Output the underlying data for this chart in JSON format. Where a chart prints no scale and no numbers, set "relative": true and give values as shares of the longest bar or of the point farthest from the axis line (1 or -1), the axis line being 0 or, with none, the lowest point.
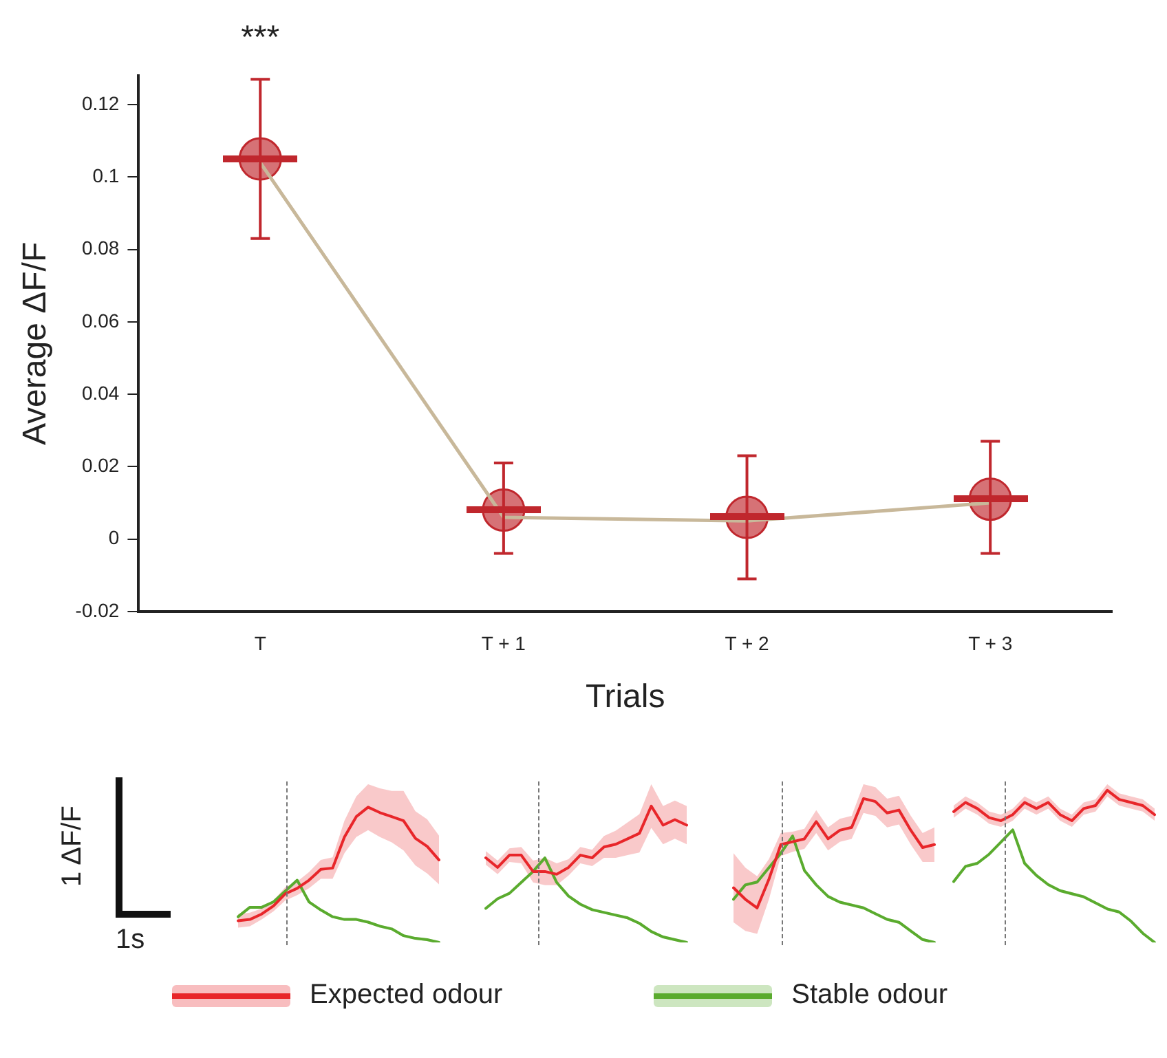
{
  "chart_data": [
    {
      "type": "line",
      "categories": [
        "T",
        "T + 1",
        "T + 2",
        "T + 3"
      ],
      "xlabel": "Trials",
      "ylabel": "Average ΔF/F",
      "ylim": [
        -0.02,
        0.128
      ],
      "yticks": [
        -0.02,
        0,
        0.02,
        0.04,
        0.06,
        0.08,
        0.1,
        0.12
      ],
      "grid": false,
      "series": [
        {
          "type": "line",
          "color": "#c8b89a",
          "values": [
            0.104,
            0.006,
            0.005,
            0.01
          ],
          "marker": "none"
        },
        {
          "type": "scatter",
          "color": "#c0272d",
          "values": [
            0.105,
            0.008,
            0.006,
            0.011
          ],
          "errors": [
            [
              0.083,
              0.127
            ],
            [
              -0.004,
              0.021
            ],
            [
              -0.011,
              0.023
            ],
            [
              -0.004,
              0.027
            ]
          ],
          "marker": "circle"
        }
      ],
      "annotations": [
        "***"
      ]
    },
    {
      "type": "line",
      "relative": true,
      "categories": [
        null,
        null,
        null,
        null,
        null,
        null,
        null,
        null,
        null,
        null,
        null,
        null,
        null,
        null,
        null,
        null,
        null,
        null
      ],
      "tick_labels": false,
      "legend": "bottom",
      "line_style": "solid",
      "marker": "none",
      "series": [
        {
          "name": "Expected odour",
          "color": "#e8262a",
          "values": [
            0.16,
            0.17,
            0.21,
            0.27,
            0.36,
            0.4,
            0.46,
            0.54,
            0.55,
            0.78,
            0.93,
            1,
            0.96,
            0.93,
            0.9,
            0.77,
            0.71,
            0.61
          ],
          "lower": [
            0.11,
            0.12,
            0.17,
            0.23,
            0.31,
            0.35,
            0.4,
            0.47,
            0.47,
            0.66,
            0.78,
            0.83,
            0.78,
            0.74,
            0.68,
            0.57,
            0.51,
            0.43
          ],
          "upper": [
            0.21,
            0.22,
            0.25,
            0.31,
            0.41,
            0.45,
            0.52,
            0.61,
            0.63,
            0.9,
            1.08,
            1.17,
            1.14,
            1.12,
            1.12,
            0.97,
            0.91,
            0.79
          ]
        },
        {
          "name": "Stable odour",
          "color": "#5aab2e",
          "values": [
            0.19,
            0.26,
            0.26,
            0.3,
            0.38,
            0.46,
            0.3,
            0.24,
            0.19,
            0.17,
            0.17,
            0.15,
            0.12,
            0.1,
            0.05,
            0.03,
            0.02,
            0
          ],
          "lower": [
            0.18,
            0.25,
            0.25,
            0.29,
            0.37,
            0.45,
            0.29,
            0.23,
            0.18,
            0.16,
            0.16,
            0.14,
            0.11,
            0.09,
            0.04,
            0.02,
            0.01,
            0
          ],
          "upper": [
            0.2,
            0.27,
            0.27,
            0.31,
            0.39,
            0.47,
            0.31,
            0.25,
            0.2,
            0.18,
            0.18,
            0.16,
            0.13,
            0.11,
            0.06,
            0.04,
            0.03,
            0.01
          ]
        }
      ],
      "annotations": [
        "1 ΔF/F",
        "1s"
      ]
    },
    {
      "type": "line",
      "relative": true,
      "categories": [
        null,
        null,
        null,
        null,
        null,
        null,
        null,
        null,
        null,
        null,
        null,
        null,
        null,
        null,
        null,
        null,
        null,
        null
      ],
      "tick_labels": false,
      "line_style": "solid",
      "marker": "none",
      "series": [
        {
          "color": "#e8262a",
          "values": [
            0.62,
            0.55,
            0.64,
            0.64,
            0.52,
            0.52,
            0.5,
            0.55,
            0.64,
            0.62,
            0.7,
            0.72,
            0.76,
            0.8,
            1,
            0.86,
            0.9,
            0.86
          ],
          "lower": [
            0.57,
            0.5,
            0.59,
            0.58,
            0.44,
            0.42,
            0.42,
            0.49,
            0.58,
            0.56,
            0.62,
            0.62,
            0.64,
            0.66,
            0.84,
            0.72,
            0.76,
            0.72
          ],
          "upper": [
            0.67,
            0.6,
            0.69,
            0.7,
            0.6,
            0.62,
            0.58,
            0.61,
            0.7,
            0.68,
            0.78,
            0.82,
            0.88,
            0.94,
            1.16,
            1.0,
            1.04,
            1.0
          ]
        },
        {
          "color": "#5aab2e",
          "values": [
            0.25,
            0.32,
            0.36,
            0.44,
            0.52,
            0.62,
            0.44,
            0.34,
            0.28,
            0.24,
            0.22,
            0.2,
            0.18,
            0.14,
            0.08,
            0.04,
            0.02,
            0
          ],
          "lower": [
            0.24,
            0.31,
            0.35,
            0.43,
            0.51,
            0.61,
            0.43,
            0.33,
            0.27,
            0.23,
            0.21,
            0.19,
            0.17,
            0.13,
            0.07,
            0.03,
            0.01,
            0
          ],
          "upper": [
            0.26,
            0.33,
            0.37,
            0.45,
            0.53,
            0.63,
            0.45,
            0.35,
            0.29,
            0.25,
            0.23,
            0.21,
            0.19,
            0.15,
            0.09,
            0.05,
            0.03,
            0.01
          ]
        }
      ]
    },
    {
      "type": "line",
      "relative": true,
      "categories": [
        null,
        null,
        null,
        null,
        null,
        null,
        null,
        null,
        null,
        null,
        null,
        null,
        null,
        null,
        null,
        null,
        null,
        null
      ],
      "tick_labels": false,
      "line_style": "solid",
      "marker": "none",
      "series": [
        {
          "color": "#e8262a",
          "values": [
            0.38,
            0.3,
            0.24,
            0.44,
            0.68,
            0.7,
            0.72,
            0.84,
            0.72,
            0.78,
            0.8,
            1,
            0.98,
            0.9,
            0.92,
            0.78,
            0.66,
            0.68
          ],
          "lower": [
            0.14,
            0.08,
            0.06,
            0.3,
            0.6,
            0.63,
            0.65,
            0.76,
            0.64,
            0.7,
            0.72,
            0.9,
            0.88,
            0.8,
            0.82,
            0.68,
            0.56,
            0.56
          ],
          "upper": [
            0.62,
            0.52,
            0.46,
            0.58,
            0.76,
            0.77,
            0.79,
            0.92,
            0.8,
            0.86,
            0.88,
            1.1,
            1.08,
            1.0,
            1.02,
            0.88,
            0.76,
            0.8
          ]
        },
        {
          "color": "#5aab2e",
          "values": [
            0.3,
            0.4,
            0.42,
            0.52,
            0.62,
            0.74,
            0.5,
            0.4,
            0.32,
            0.28,
            0.26,
            0.24,
            0.2,
            0.16,
            0.14,
            0.08,
            0.02,
            0
          ],
          "lower": [
            0.29,
            0.39,
            0.41,
            0.51,
            0.61,
            0.73,
            0.49,
            0.39,
            0.31,
            0.27,
            0.25,
            0.23,
            0.19,
            0.15,
            0.13,
            0.07,
            0.01,
            0
          ],
          "upper": [
            0.31,
            0.41,
            0.43,
            0.53,
            0.63,
            0.75,
            0.51,
            0.41,
            0.33,
            0.29,
            0.27,
            0.25,
            0.21,
            0.17,
            0.15,
            0.09,
            0.03,
            0.01
          ]
        }
      ]
    },
    {
      "type": "line",
      "relative": true,
      "categories": [
        null,
        null,
        null,
        null,
        null,
        null,
        null,
        null,
        null,
        null,
        null,
        null,
        null,
        null,
        null,
        null,
        null,
        null
      ],
      "tick_labels": false,
      "line_style": "solid",
      "marker": "none",
      "series": [
        {
          "color": "#e8262a",
          "values": [
            0.86,
            0.92,
            0.88,
            0.82,
            0.8,
            0.84,
            0.92,
            0.88,
            0.92,
            0.84,
            0.8,
            0.88,
            0.9,
            1,
            0.94,
            0.92,
            0.9,
            0.84
          ],
          "lower": [
            0.82,
            0.88,
            0.84,
            0.78,
            0.76,
            0.8,
            0.88,
            0.84,
            0.88,
            0.8,
            0.76,
            0.84,
            0.86,
            0.96,
            0.9,
            0.88,
            0.86,
            0.8
          ],
          "upper": [
            0.9,
            0.96,
            0.92,
            0.86,
            0.84,
            0.88,
            0.96,
            0.92,
            0.96,
            0.88,
            0.84,
            0.92,
            0.94,
            1.04,
            0.98,
            0.96,
            0.94,
            0.88
          ]
        },
        {
          "color": "#5aab2e",
          "values": [
            0.4,
            0.5,
            0.52,
            0.58,
            0.66,
            0.74,
            0.52,
            0.44,
            0.38,
            0.34,
            0.32,
            0.3,
            0.26,
            0.22,
            0.2,
            0.14,
            0.06,
            0
          ],
          "lower": [
            0.39,
            0.49,
            0.51,
            0.57,
            0.65,
            0.73,
            0.51,
            0.43,
            0.37,
            0.33,
            0.31,
            0.29,
            0.25,
            0.21,
            0.19,
            0.13,
            0.05,
            0
          ],
          "upper": [
            0.41,
            0.51,
            0.53,
            0.59,
            0.67,
            0.75,
            0.53,
            0.45,
            0.39,
            0.35,
            0.33,
            0.31,
            0.27,
            0.23,
            0.21,
            0.15,
            0.07,
            0.01
          ]
        }
      ]
    }
  ]
}
